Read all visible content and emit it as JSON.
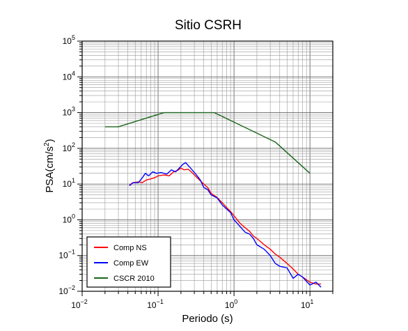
{
  "chart_data": {
    "type": "line",
    "title": "Sitio CSRH",
    "xlabel": "Periodo (s)",
    "ylabel_base": "PSA(cm/s",
    "ylabel_sup": "2",
    "ylabel_close": ")",
    "xscale": "log",
    "yscale": "log",
    "xlim": [
      0.01,
      20
    ],
    "ylim": [
      0.01,
      100000
    ],
    "grid": true,
    "legend_position": "bottom-left",
    "x_ticks": [
      {
        "value": 0.01,
        "base": "10",
        "exp": "−2"
      },
      {
        "value": 0.1,
        "base": "10",
        "exp": "−1"
      },
      {
        "value": 1,
        "base": "10",
        "exp": "0"
      },
      {
        "value": 10,
        "base": "10",
        "exp": "1"
      }
    ],
    "y_ticks": [
      {
        "value": 0.01,
        "base": "10",
        "exp": "−2"
      },
      {
        "value": 0.1,
        "base": "10",
        "exp": "−1"
      },
      {
        "value": 1,
        "base": "10",
        "exp": "0"
      },
      {
        "value": 10,
        "base": "10",
        "exp": "1"
      },
      {
        "value": 100,
        "base": "10",
        "exp": "2"
      },
      {
        "value": 1000,
        "base": "10",
        "exp": "3"
      },
      {
        "value": 10000,
        "base": "10",
        "exp": "4"
      },
      {
        "value": 100000,
        "base": "10",
        "exp": "5"
      }
    ],
    "series": [
      {
        "name": "Comp NS",
        "color": "#ff0000",
        "points": [
          [
            0.042,
            9.5
          ],
          [
            0.047,
            11
          ],
          [
            0.055,
            11.5
          ],
          [
            0.062,
            11
          ],
          [
            0.07,
            13
          ],
          [
            0.08,
            14
          ],
          [
            0.09,
            15
          ],
          [
            0.1,
            17
          ],
          [
            0.12,
            18
          ],
          [
            0.14,
            17
          ],
          [
            0.16,
            22
          ],
          [
            0.18,
            24
          ],
          [
            0.2,
            28
          ],
          [
            0.22,
            25
          ],
          [
            0.25,
            26
          ],
          [
            0.28,
            21
          ],
          [
            0.3,
            18
          ],
          [
            0.35,
            13
          ],
          [
            0.4,
            10
          ],
          [
            0.45,
            8
          ],
          [
            0.5,
            5.5
          ],
          [
            0.6,
            4.2
          ],
          [
            0.7,
            3
          ],
          [
            0.8,
            2.2
          ],
          [
            0.9,
            1.7
          ],
          [
            1.0,
            1.3
          ],
          [
            1.2,
            0.8
          ],
          [
            1.4,
            0.6
          ],
          [
            1.6,
            0.48
          ],
          [
            1.8,
            0.35
          ],
          [
            2.0,
            0.3
          ],
          [
            2.5,
            0.2
          ],
          [
            3.0,
            0.15
          ],
          [
            3.5,
            0.11
          ],
          [
            4.0,
            0.09
          ],
          [
            5.0,
            0.06
          ],
          [
            6.0,
            0.042
          ],
          [
            7.0,
            0.03
          ],
          [
            8.0,
            0.025
          ],
          [
            10.0,
            0.018
          ],
          [
            12.0,
            0.016
          ],
          [
            14.0,
            0.016
          ]
        ]
      },
      {
        "name": "Comp EW",
        "color": "#0000ff",
        "points": [
          [
            0.042,
            9
          ],
          [
            0.047,
            11
          ],
          [
            0.055,
            11
          ],
          [
            0.062,
            15
          ],
          [
            0.068,
            20
          ],
          [
            0.075,
            17
          ],
          [
            0.085,
            22
          ],
          [
            0.095,
            20
          ],
          [
            0.11,
            21
          ],
          [
            0.13,
            19
          ],
          [
            0.15,
            25
          ],
          [
            0.17,
            22
          ],
          [
            0.19,
            28
          ],
          [
            0.21,
            35
          ],
          [
            0.23,
            40
          ],
          [
            0.26,
            30
          ],
          [
            0.29,
            23
          ],
          [
            0.32,
            18
          ],
          [
            0.36,
            13
          ],
          [
            0.4,
            8
          ],
          [
            0.45,
            7
          ],
          [
            0.5,
            5
          ],
          [
            0.6,
            4.1
          ],
          [
            0.7,
            2.6
          ],
          [
            0.8,
            2.0
          ],
          [
            0.9,
            1.6
          ],
          [
            1.0,
            1.0
          ],
          [
            1.2,
            0.65
          ],
          [
            1.4,
            0.45
          ],
          [
            1.6,
            0.4
          ],
          [
            1.8,
            0.3
          ],
          [
            2.0,
            0.2
          ],
          [
            2.5,
            0.15
          ],
          [
            3.0,
            0.1
          ],
          [
            3.5,
            0.06
          ],
          [
            4.0,
            0.05
          ],
          [
            5.0,
            0.045
          ],
          [
            6.0,
            0.023
          ],
          [
            7.0,
            0.03
          ],
          [
            8.0,
            0.025
          ],
          [
            10.0,
            0.015
          ],
          [
            12.0,
            0.018
          ],
          [
            14.0,
            0.013
          ]
        ]
      },
      {
        "name": "CSCR 2010",
        "color": "#1a661a",
        "points": [
          [
            0.02,
            400
          ],
          [
            0.03,
            400
          ],
          [
            0.12,
            1000
          ],
          [
            0.55,
            1000
          ],
          [
            3.5,
            150
          ],
          [
            10.0,
            20
          ]
        ]
      }
    ]
  }
}
